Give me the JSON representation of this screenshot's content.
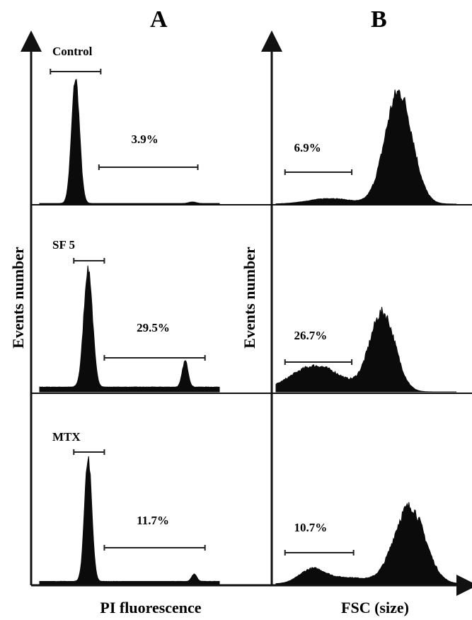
{
  "figure": {
    "panel_a_letter": "A",
    "panel_b_letter": "B",
    "y_axis_label_a": "Events number",
    "y_axis_label_b": "Events number",
    "x_axis_label_a": "PI fluorescence",
    "x_axis_label_b": "FSC (size)"
  },
  "chart_data": [
    {
      "type": "area",
      "panel": "A",
      "xlabel": "PI fluorescence",
      "ylabel": "Events number",
      "rows": [
        {
          "label": "Control",
          "gate_percent": "3.9%",
          "peaks": [
            {
              "center": 0.2,
              "width": 0.022,
              "height": 1.0
            },
            {
              "center": 0.85,
              "width": 0.02,
              "height": 0.012
            }
          ],
          "baseline": 0.005,
          "gates": [
            {
              "from": 0.06,
              "to": 0.33
            },
            {
              "from": 0.33,
              "to": 0.88
            }
          ]
        },
        {
          "label": "SF 5",
          "gate_percent": "29.5%",
          "peaks": [
            {
              "center": 0.27,
              "width": 0.024,
              "height": 1.0
            },
            {
              "center": 0.81,
              "width": 0.016,
              "height": 0.22
            }
          ],
          "baseline": 0.04,
          "gates": [
            {
              "from": 0.19,
              "to": 0.36
            },
            {
              "from": 0.36,
              "to": 0.92
            }
          ]
        },
        {
          "label": "MTX",
          "gate_percent": "11.7%",
          "peaks": [
            {
              "center": 0.27,
              "width": 0.02,
              "height": 1.0
            },
            {
              "center": 0.86,
              "width": 0.014,
              "height": 0.06
            }
          ],
          "baseline": 0.02,
          "gates": [
            {
              "from": 0.19,
              "to": 0.36
            },
            {
              "from": 0.36,
              "to": 0.92
            }
          ]
        }
      ]
    },
    {
      "type": "area",
      "panel": "B",
      "xlabel": "FSC (size)",
      "ylabel": "Events number",
      "rows": [
        {
          "label": "",
          "gate_percent": "6.9%",
          "peaks": [
            {
              "center": 0.68,
              "width": 0.075,
              "height": 1.0
            },
            {
              "center": 0.3,
              "width": 0.12,
              "height": 0.05
            }
          ],
          "baseline": 0.0,
          "gates": [
            {
              "from": 0.05,
              "to": 0.42
            }
          ]
        },
        {
          "label": "",
          "gate_percent": "26.7%",
          "peaks": [
            {
              "center": 0.59,
              "width": 0.07,
              "height": 1.0
            },
            {
              "center": 0.22,
              "width": 0.14,
              "height": 0.33
            }
          ],
          "baseline": 0.0,
          "gates": [
            {
              "from": 0.05,
              "to": 0.42
            }
          ]
        },
        {
          "label": "",
          "gate_percent": "10.7%",
          "peaks": [
            {
              "center": 0.74,
              "width": 0.085,
              "height": 1.0
            },
            {
              "center": 0.2,
              "width": 0.07,
              "height": 0.18
            },
            {
              "center": 0.4,
              "width": 0.12,
              "height": 0.08
            }
          ],
          "baseline": 0.0,
          "gates": [
            {
              "from": 0.05,
              "to": 0.43
            }
          ]
        }
      ]
    }
  ]
}
